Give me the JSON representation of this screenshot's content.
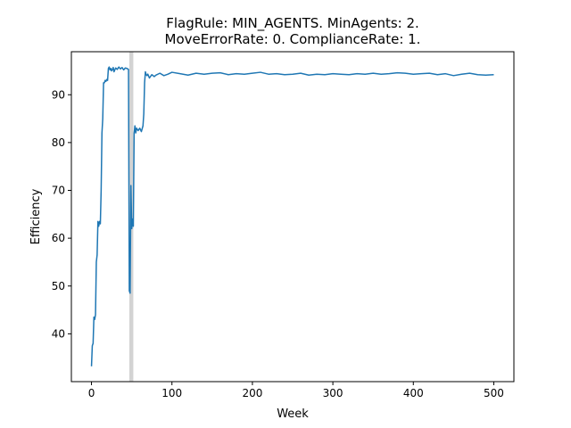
{
  "chart_data": {
    "type": "line",
    "title_lines": [
      "FlagRule: MIN_AGENTS. MinAgents: 2.",
      "MoveErrorRate: 0. ComplianceRate: 1."
    ],
    "xlabel": "Week",
    "ylabel": "Efficiency",
    "xlim": [
      -25,
      525
    ],
    "ylim": [
      30,
      99
    ],
    "x_ticks": [
      0,
      100,
      200,
      300,
      400,
      500
    ],
    "y_ticks": [
      40,
      50,
      60,
      70,
      80,
      90
    ],
    "grid": false,
    "legend": "none",
    "line_color": "#1f77b4",
    "shaded_span": {
      "x_start": 47,
      "x_end": 52,
      "color": "#d3d3d3"
    },
    "series": [
      {
        "x": [
          0,
          1,
          2,
          3,
          4,
          5,
          6,
          7,
          8,
          9,
          10,
          11,
          12,
          13,
          14,
          15,
          16,
          17,
          18,
          19,
          20,
          21,
          22,
          23,
          24,
          25,
          26,
          27,
          28,
          29,
          30,
          32,
          34,
          36,
          38,
          40,
          42,
          44,
          45,
          46,
          47,
          48,
          49,
          50,
          51,
          52,
          53,
          54,
          55,
          56,
          58,
          60,
          62,
          64,
          65,
          66,
          67,
          68,
          69,
          70,
          72,
          75,
          78,
          80,
          85,
          90,
          95,
          100,
          110,
          120,
          130,
          140,
          150,
          160,
          170,
          180,
          190,
          200,
          210,
          220,
          230,
          240,
          250,
          260,
          270,
          280,
          290,
          300,
          310,
          320,
          330,
          340,
          350,
          360,
          370,
          380,
          390,
          400,
          410,
          420,
          430,
          440,
          450,
          460,
          470,
          480,
          490,
          500
        ],
        "y": [
          33.2,
          37.5,
          38,
          43.5,
          43,
          44,
          55,
          56.5,
          63.5,
          62.5,
          63.5,
          63,
          70,
          82,
          85,
          92.5,
          92.5,
          93,
          92.8,
          93.2,
          93,
          95.5,
          95.8,
          95.2,
          95.5,
          95,
          95.3,
          95.7,
          94.8,
          95.2,
          95.6,
          95.3,
          95.8,
          95.4,
          95.7,
          95.2,
          95.6,
          95.5,
          95.4,
          95.3,
          49,
          48.5,
          71,
          62,
          64,
          62.5,
          82,
          83.5,
          82,
          83,
          82.5,
          83,
          82.3,
          83.5,
          86,
          92.5,
          94.8,
          94.2,
          94,
          94.3,
          93.5,
          94.2,
          93.8,
          94.1,
          94.5,
          94,
          94.3,
          94.7,
          94.4,
          94.1,
          94.5,
          94.3,
          94.5,
          94.6,
          94.2,
          94.4,
          94.3,
          94.5,
          94.7,
          94.3,
          94.4,
          94.2,
          94.3,
          94.5,
          94.1,
          94.3,
          94.2,
          94.4,
          94.3,
          94.2,
          94.4,
          94.3,
          94.5,
          94.3,
          94.4,
          94.6,
          94.5,
          94.3,
          94.4,
          94.5,
          94.2,
          94.4,
          94.0,
          94.3,
          94.5,
          94.2,
          94.1,
          94.2
        ]
      }
    ]
  }
}
